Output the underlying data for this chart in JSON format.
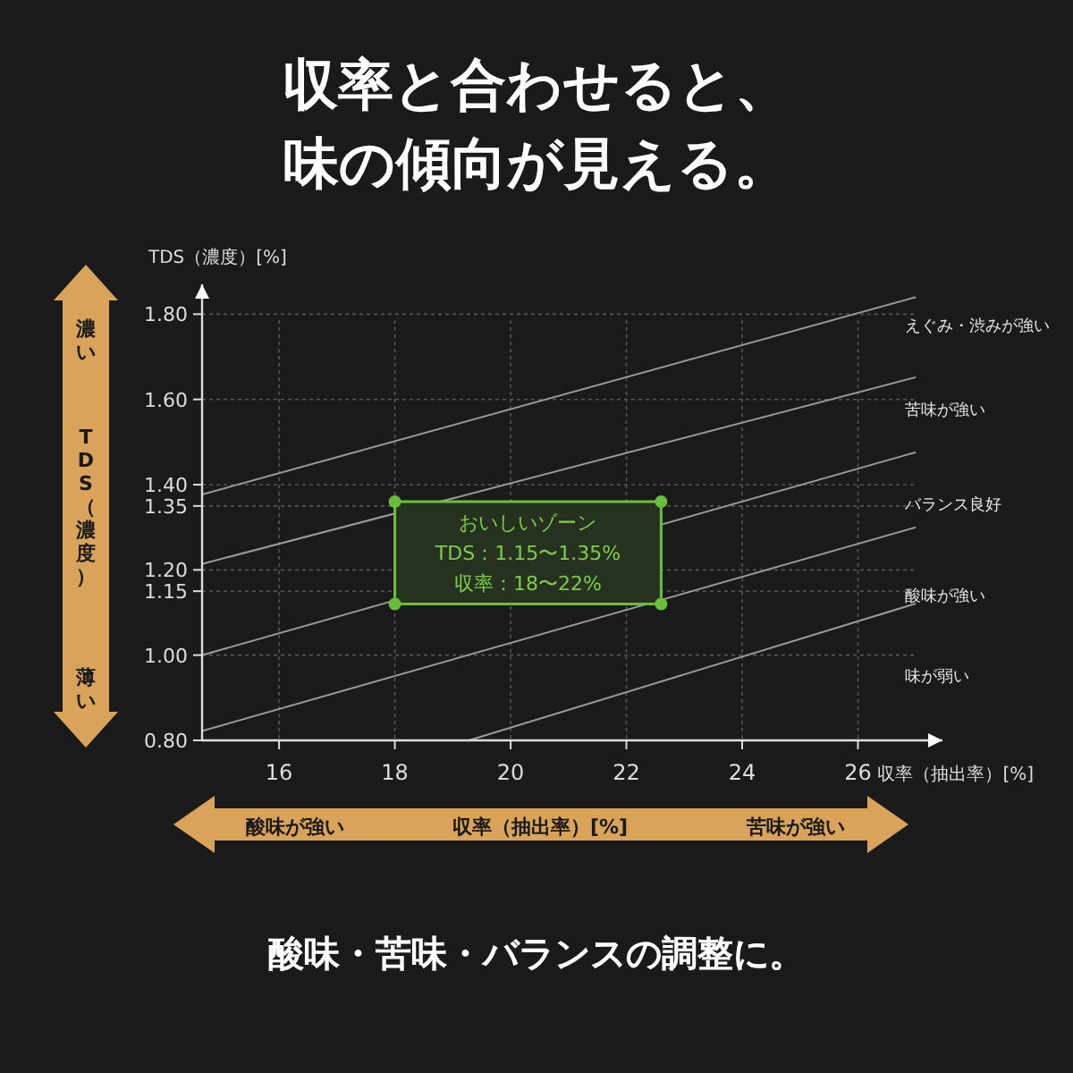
{
  "chart_data": {
    "type": "line",
    "title": "収率と合わせると、味の傾向が見える。",
    "xlabel": "収率（抽出率）[%]",
    "ylabel": "TDS（濃度）[%]",
    "xlim": [
      14.67,
      27.46
    ],
    "ylim": [
      0.8,
      1.87
    ],
    "xticks": [
      16,
      18,
      20,
      22,
      24,
      26
    ],
    "yticks": [
      {
        "value": 0.8,
        "label": "0.80"
      },
      {
        "value": 1.0,
        "label": "1.00"
      },
      {
        "value": 1.15,
        "label": "1.15"
      },
      {
        "value": 1.2,
        "label": "1.20"
      },
      {
        "value": 1.35,
        "label": "1.35"
      },
      {
        "value": 1.4,
        "label": "1.40"
      },
      {
        "value": 1.6,
        "label": "1.60"
      },
      {
        "value": 1.8,
        "label": "1.80"
      }
    ],
    "grid": true,
    "line_style": "solid",
    "series": [
      {
        "color": "#9a9a9a",
        "x": [
          14.67,
          27.0
        ],
        "values": [
          1.377,
          1.84
        ]
      },
      {
        "color": "#9a9a9a",
        "x": [
          14.67,
          27.0
        ],
        "values": [
          1.214,
          1.652
        ]
      },
      {
        "color": "#9a9a9a",
        "x": [
          14.67,
          27.0
        ],
        "values": [
          1.0,
          1.476
        ]
      },
      {
        "color": "#9a9a9a",
        "x": [
          14.67,
          27.0
        ],
        "values": [
          0.822,
          1.3
        ]
      },
      {
        "color": "#9a9a9a",
        "x": [
          19.28,
          27.0
        ],
        "values": [
          0.8,
          1.121
        ]
      },
      {
        "type": "area",
        "color": "#6abf3a",
        "marker": "circle",
        "x": [
          18,
          18,
          22.6,
          22.6
        ],
        "values": [
          1.12,
          1.36,
          1.36,
          1.12
        ]
      }
    ],
    "annotations": [
      "酸味・苦味・バランスの調整に。",
      "濃い",
      "TDS（濃度）",
      "薄い",
      "酸味が強い",
      "収率（抽出率）[%]",
      "苦味が強い",
      "えぐみ・渋みが強い",
      "苦味が強い",
      "バランス良好",
      "酸味が強い",
      "味が弱い",
      "おいしいゾーン",
      "TDS：1.15〜1.35%",
      "収率：18〜22%"
    ]
  }
}
